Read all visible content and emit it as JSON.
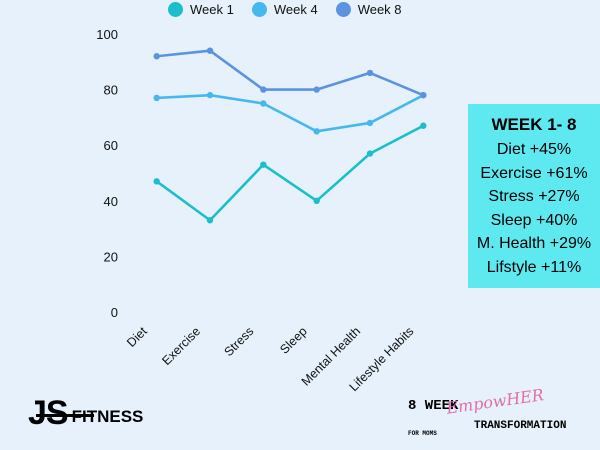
{
  "chart_data": {
    "type": "line",
    "categories": [
      "Diet",
      "Exercise",
      "Stress",
      "Sleep",
      "Mental Health",
      "Lifestyle Habits"
    ],
    "series": [
      {
        "name": "Week 1",
        "values": [
          47,
          33,
          53,
          40,
          57,
          67
        ],
        "color": "#1bbfcc"
      },
      {
        "name": "Week 4",
        "values": [
          77,
          78,
          75,
          65,
          68,
          78
        ],
        "color": "#45b9ef"
      },
      {
        "name": "Week 8",
        "values": [
          92,
          94,
          80,
          80,
          86,
          78
        ],
        "color": "#5c93e0"
      }
    ],
    "ylim": [
      0,
      100
    ],
    "yticks": [
      0,
      20,
      40,
      60,
      80,
      100
    ],
    "grid": false,
    "legend_position": "top"
  },
  "summary": {
    "title": "WEEK 1- 8",
    "lines": [
      "Diet +45%",
      "Exercise +61%",
      "Stress +27%",
      "Sleep +40%",
      "M. Health +29%",
      "Lifstyle +11%"
    ]
  },
  "brand": {
    "part1": "JS",
    "part2": "FITNESS"
  },
  "program": {
    "line1": "8 WEEK",
    "script": "EmpowHER",
    "line2": "TRANSFORMATION",
    "small": "FOR MOMS"
  }
}
